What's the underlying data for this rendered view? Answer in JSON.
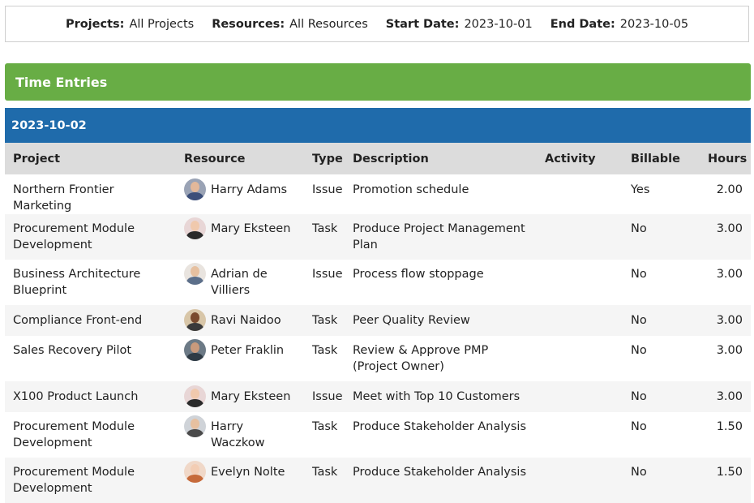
{
  "filters": [
    {
      "label": "Projects:",
      "value": "All Projects"
    },
    {
      "label": "Resources:",
      "value": "All Resources"
    },
    {
      "label": "Start Date:",
      "value": "2023-10-01"
    },
    {
      "label": "End Date:",
      "value": "2023-10-05"
    }
  ],
  "section_title": "Time Entries",
  "group_date": "2023-10-02",
  "columns": {
    "project": "Project",
    "resource": "Resource",
    "type": "Type",
    "description": "Description",
    "activity": "Activity",
    "billable": "Billable",
    "hours": "Hours"
  },
  "colors": {
    "section": "#68ad45",
    "band": "#1f6bab",
    "header": "#dcdcdc"
  },
  "rows": [
    {
      "project": "Northern Frontier Marketing",
      "resource": "Harry Adams",
      "avatar": "avatar-harry-adams",
      "avatar_bg": "#9aa3b5",
      "type": "Issue",
      "description": "Promotion schedule",
      "activity": "",
      "billable": "Yes",
      "hours": "2.00"
    },
    {
      "project": "Procurement Module Development",
      "resource": "Mary Eksteen",
      "avatar": "avatar-mary-eksteen",
      "avatar_bg": "#e8d6d6",
      "type": "Task",
      "description": "Produce Project Management Plan",
      "activity": "",
      "billable": "No",
      "hours": "3.00"
    },
    {
      "project": "Business Architecture Blueprint",
      "resource": "Adrian de Villiers",
      "avatar": "avatar-adrian-de-villiers",
      "avatar_bg": "#e9e4df",
      "type": "Issue",
      "description": "Process flow stoppage",
      "activity": "",
      "billable": "No",
      "hours": "3.00"
    },
    {
      "project": "Compliance Front-end",
      "resource": "Ravi Naidoo",
      "avatar": "avatar-ravi-naidoo",
      "avatar_bg": "#d8c6a8",
      "type": "Task",
      "description": "Peer Quality Review",
      "activity": "",
      "billable": "No",
      "hours": "3.00"
    },
    {
      "project": "Sales Recovery Pilot",
      "resource": "Peter Fraklin",
      "avatar": "avatar-peter-fraklin",
      "avatar_bg": "#6c7a86",
      "type": "Task",
      "description": "Review & Approve PMP (Project Owner)",
      "activity": "",
      "billable": "No",
      "hours": "3.00"
    },
    {
      "project": "X100 Product Launch",
      "resource": "Mary Eksteen",
      "avatar": "avatar-mary-eksteen",
      "avatar_bg": "#e8d6d6",
      "type": "Issue",
      "description": "Meet with Top 10 Customers",
      "activity": "",
      "billable": "No",
      "hours": "3.00"
    },
    {
      "project": "Procurement Module Development",
      "resource": "Harry Waczkow",
      "avatar": "avatar-harry-waczkow",
      "avatar_bg": "#cfd3d8",
      "type": "Task",
      "description": "Produce Stakeholder Analysis",
      "activity": "",
      "billable": "No",
      "hours": "1.50"
    },
    {
      "project": "Procurement Module Development",
      "resource": "Evelyn Nolte",
      "avatar": "avatar-evelyn-nolte",
      "avatar_bg": "#f0d8c8",
      "type": "Task",
      "description": "Produce Stakeholder Analysis",
      "activity": "",
      "billable": "No",
      "hours": "1.50"
    }
  ]
}
